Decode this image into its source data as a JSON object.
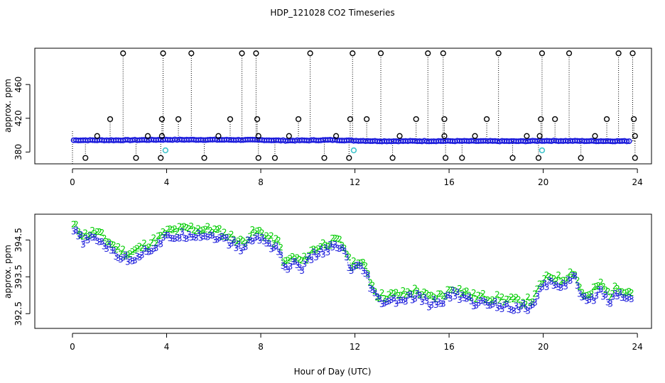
{
  "chart_data": [
    {
      "type": "scatter",
      "title": "HDP_121028  CO2 Timeseries",
      "xlabel": "",
      "ylabel": "approx. ppm",
      "xlim": [
        -1.6,
        24.6
      ],
      "ylim": [
        366,
        503
      ],
      "xticks": [
        0,
        4,
        8,
        12,
        16,
        20,
        24
      ],
      "yticks": [
        380,
        420,
        460
      ],
      "colors": {
        "main": "#1a1adb",
        "spike": "#000000",
        "cyan": "#3fc4cc",
        "drop": "#000000"
      },
      "baseline": [
        {
          "x": 0.0,
          "y": 394
        },
        {
          "x": 2.0,
          "y": 394
        },
        {
          "x": 4.0,
          "y": 394.6
        },
        {
          "x": 6.0,
          "y": 394.5
        },
        {
          "x": 8.0,
          "y": 394.3
        },
        {
          "x": 9.0,
          "y": 393.6
        },
        {
          "x": 10.0,
          "y": 393.8
        },
        {
          "x": 11.0,
          "y": 394.3
        },
        {
          "x": 12.0,
          "y": 393.5
        },
        {
          "x": 13.0,
          "y": 392.9
        },
        {
          "x": 16.0,
          "y": 393.0
        },
        {
          "x": 19.0,
          "y": 392.8
        },
        {
          "x": 20.0,
          "y": 393.3
        },
        {
          "x": 22.0,
          "y": 393.0
        },
        {
          "x": 23.8,
          "y": 392.9
        }
      ],
      "spikes": [
        {
          "x": 2.15,
          "y": 497
        },
        {
          "x": 3.85,
          "y": 497
        },
        {
          "x": 5.05,
          "y": 497
        },
        {
          "x": 7.2,
          "y": 497
        },
        {
          "x": 7.8,
          "y": 497
        },
        {
          "x": 10.1,
          "y": 497
        },
        {
          "x": 11.9,
          "y": 497
        },
        {
          "x": 13.1,
          "y": 497
        },
        {
          "x": 15.1,
          "y": 497
        },
        {
          "x": 15.75,
          "y": 497
        },
        {
          "x": 18.1,
          "y": 497
        },
        {
          "x": 19.95,
          "y": 497
        },
        {
          "x": 21.1,
          "y": 497
        },
        {
          "x": 23.2,
          "y": 497
        },
        {
          "x": 23.8,
          "y": 497
        },
        {
          "x": 1.6,
          "y": 419
        },
        {
          "x": 3.8,
          "y": 419
        },
        {
          "x": 4.5,
          "y": 419
        },
        {
          "x": 6.7,
          "y": 419
        },
        {
          "x": 7.85,
          "y": 419
        },
        {
          "x": 9.6,
          "y": 419
        },
        {
          "x": 11.8,
          "y": 419
        },
        {
          "x": 12.5,
          "y": 419
        },
        {
          "x": 14.6,
          "y": 419
        },
        {
          "x": 15.8,
          "y": 419
        },
        {
          "x": 17.6,
          "y": 419
        },
        {
          "x": 19.9,
          "y": 419
        },
        {
          "x": 20.5,
          "y": 419
        },
        {
          "x": 22.7,
          "y": 419
        },
        {
          "x": 23.85,
          "y": 419
        },
        {
          "x": 1.05,
          "y": 399
        },
        {
          "x": 3.2,
          "y": 399
        },
        {
          "x": 3.8,
          "y": 399
        },
        {
          "x": 6.2,
          "y": 399
        },
        {
          "x": 7.9,
          "y": 399
        },
        {
          "x": 9.2,
          "y": 399
        },
        {
          "x": 11.2,
          "y": 399
        },
        {
          "x": 13.9,
          "y": 399
        },
        {
          "x": 15.8,
          "y": 399
        },
        {
          "x": 17.1,
          "y": 399
        },
        {
          "x": 19.3,
          "y": 399
        },
        {
          "x": 19.85,
          "y": 399
        },
        {
          "x": 22.2,
          "y": 399
        },
        {
          "x": 23.9,
          "y": 399
        }
      ],
      "drops": [
        {
          "x": 0.55,
          "y": 373
        },
        {
          "x": 2.7,
          "y": 373
        },
        {
          "x": 3.75,
          "y": 373
        },
        {
          "x": 5.6,
          "y": 373
        },
        {
          "x": 7.9,
          "y": 373
        },
        {
          "x": 8.6,
          "y": 373
        },
        {
          "x": 10.7,
          "y": 373
        },
        {
          "x": 11.75,
          "y": 373
        },
        {
          "x": 13.6,
          "y": 373
        },
        {
          "x": 15.85,
          "y": 373
        },
        {
          "x": 16.55,
          "y": 373
        },
        {
          "x": 18.7,
          "y": 373
        },
        {
          "x": 19.8,
          "y": 373
        },
        {
          "x": 21.6,
          "y": 373
        },
        {
          "x": 23.9,
          "y": 373
        }
      ],
      "cyan_points": [
        {
          "x": 3.95,
          "y": 382
        },
        {
          "x": 11.95,
          "y": 382
        },
        {
          "x": 19.95,
          "y": 382
        }
      ]
    },
    {
      "type": "scatter",
      "title": "",
      "xlabel": "Hour of Day (UTC)",
      "ylabel": "approx. ppm",
      "xlim": [
        -1.6,
        24.6
      ],
      "ylim": [
        392.1,
        395.2
      ],
      "xticks": [
        0,
        4,
        8,
        12,
        16,
        20,
        24
      ],
      "yticks": [
        392.5,
        393.5,
        394.5
      ],
      "series": [
        {
          "name": "2",
          "color": "#00cc00",
          "offset": 0.12
        },
        {
          "name": "3",
          "color": "#1a1adb",
          "offset": -0.05
        }
      ],
      "trend": [
        {
          "x": 0.0,
          "y": 394.8
        },
        {
          "x": 0.5,
          "y": 394.5
        },
        {
          "x": 1.0,
          "y": 394.6
        },
        {
          "x": 1.5,
          "y": 394.35
        },
        {
          "x": 2.0,
          "y": 394.1
        },
        {
          "x": 2.4,
          "y": 394.0
        },
        {
          "x": 3.0,
          "y": 394.2
        },
        {
          "x": 3.6,
          "y": 394.4
        },
        {
          "x": 4.0,
          "y": 394.6
        },
        {
          "x": 5.0,
          "y": 394.7
        },
        {
          "x": 6.0,
          "y": 394.65
        },
        {
          "x": 6.8,
          "y": 394.45
        },
        {
          "x": 7.2,
          "y": 394.3
        },
        {
          "x": 7.6,
          "y": 394.55
        },
        {
          "x": 8.0,
          "y": 394.6
        },
        {
          "x": 8.4,
          "y": 394.4
        },
        {
          "x": 8.8,
          "y": 394.3
        },
        {
          "x": 9.0,
          "y": 393.7
        },
        {
          "x": 9.3,
          "y": 393.9
        },
        {
          "x": 9.8,
          "y": 393.8
        },
        {
          "x": 10.2,
          "y": 394.1
        },
        {
          "x": 10.8,
          "y": 394.3
        },
        {
          "x": 11.3,
          "y": 394.35
        },
        {
          "x": 11.6,
          "y": 394.15
        },
        {
          "x": 11.8,
          "y": 393.7
        },
        {
          "x": 12.1,
          "y": 393.8
        },
        {
          "x": 12.5,
          "y": 393.6
        },
        {
          "x": 12.7,
          "y": 393.2
        },
        {
          "x": 13.0,
          "y": 392.85
        },
        {
          "x": 14.0,
          "y": 392.9
        },
        {
          "x": 14.6,
          "y": 393.0
        },
        {
          "x": 15.2,
          "y": 392.8
        },
        {
          "x": 15.8,
          "y": 392.9
        },
        {
          "x": 16.2,
          "y": 393.1
        },
        {
          "x": 17.0,
          "y": 392.85
        },
        {
          "x": 18.0,
          "y": 392.8
        },
        {
          "x": 19.0,
          "y": 392.7
        },
        {
          "x": 19.6,
          "y": 392.75
        },
        {
          "x": 19.9,
          "y": 393.2
        },
        {
          "x": 20.3,
          "y": 393.4
        },
        {
          "x": 20.8,
          "y": 393.3
        },
        {
          "x": 21.3,
          "y": 393.55
        },
        {
          "x": 21.6,
          "y": 393.0
        },
        {
          "x": 21.9,
          "y": 392.8
        },
        {
          "x": 22.4,
          "y": 393.2
        },
        {
          "x": 22.8,
          "y": 392.9
        },
        {
          "x": 23.2,
          "y": 393.1
        },
        {
          "x": 23.8,
          "y": 392.95
        }
      ]
    }
  ]
}
